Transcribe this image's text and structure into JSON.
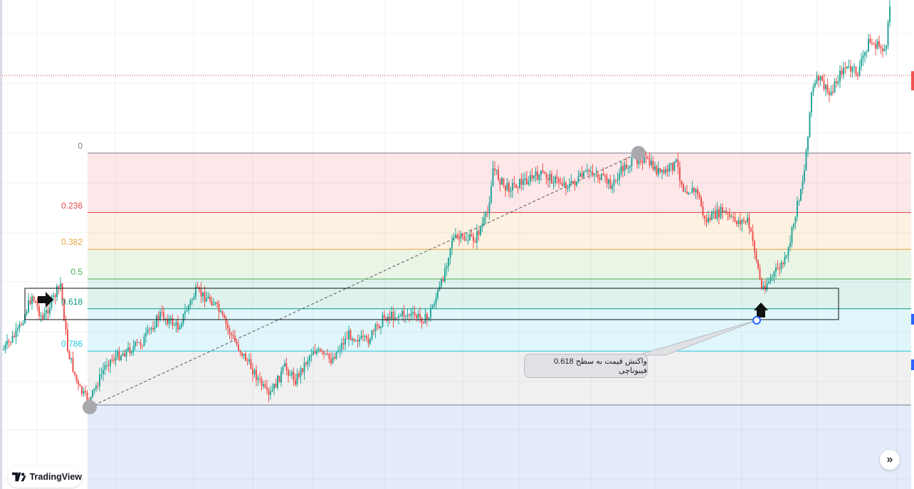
{
  "colors": {
    "up": "#26a69a",
    "down": "#ef5350",
    "price_line": "#c0392b",
    "selection": "#2962ff"
  },
  "chart_data": {
    "type": "candlestick",
    "title": "",
    "grid": true,
    "fibonacci": {
      "levels": [
        {
          "label": "0",
          "value": 0,
          "line_color": "#787b86",
          "fill": "#fde7e9"
        },
        {
          "label": "0.236",
          "value": 0.236,
          "line_color": "#e04848",
          "fill": "#fdf1e2"
        },
        {
          "label": "0.382",
          "value": 0.382,
          "line_color": "#e8a43c",
          "fill": "#eaf5e6"
        },
        {
          "label": "0.5",
          "value": 0.5,
          "line_color": "#4caf50",
          "fill": "#dff2ee"
        },
        {
          "label": "0.618",
          "value": 0.618,
          "line_color": "#089981",
          "fill": "#e0f6fa"
        },
        {
          "label": "0.786",
          "value": 0.786,
          "line_color": "#26c6da",
          "fill": "#f0f0f1"
        },
        {
          "label": "",
          "value": 1,
          "line_color": "#787b86",
          "fill": "#e6ebfc"
        }
      ],
      "label_colors": [
        "#787b86",
        "#e04848",
        "#e8a43c",
        "#4caf50",
        "#089981",
        "#26c6da",
        "#787b86"
      ]
    },
    "price_path_in_fib_ratio": [
      [
        2,
        0.78
      ],
      [
        10,
        0.71
      ],
      [
        18,
        0.565
      ],
      [
        24,
        0.66
      ],
      [
        34,
        0.52
      ],
      [
        38,
        0.78
      ],
      [
        44,
        0.93
      ],
      [
        50,
        0.99
      ],
      [
        60,
        0.83
      ],
      [
        80,
        0.75
      ],
      [
        90,
        0.64
      ],
      [
        100,
        0.69
      ],
      [
        110,
        0.55
      ],
      [
        120,
        0.59
      ],
      [
        132,
        0.75
      ],
      [
        142,
        0.86
      ],
      [
        151,
        0.97
      ],
      [
        160,
        0.85
      ],
      [
        166,
        0.9
      ],
      [
        176,
        0.78
      ],
      [
        186,
        0.82
      ],
      [
        196,
        0.72
      ],
      [
        206,
        0.75
      ],
      [
        216,
        0.65
      ],
      [
        228,
        0.64
      ],
      [
        240,
        0.66
      ],
      [
        248,
        0.52
      ],
      [
        254,
        0.34
      ],
      [
        260,
        0.34
      ],
      [
        267,
        0.34
      ],
      [
        274,
        0.24
      ],
      [
        277,
        0.06
      ],
      [
        284,
        0.14
      ],
      [
        304,
        0.085
      ],
      [
        320,
        0.13
      ],
      [
        332,
        0.07
      ],
      [
        344,
        0.13
      ],
      [
        350,
        0.06
      ],
      [
        360,
        0.015
      ],
      [
        372,
        0.085
      ],
      [
        380,
        0.04
      ],
      [
        384,
        0.14
      ],
      [
        392,
        0.155
      ],
      [
        396,
        0.27
      ],
      [
        406,
        0.23
      ],
      [
        412,
        0.27
      ],
      [
        420,
        0.27
      ],
      [
        424,
        0.38
      ],
      [
        428,
        0.54
      ],
      [
        436,
        0.47
      ],
      [
        442,
        0.42
      ],
      [
        447,
        0.24
      ],
      [
        452,
        0.07
      ],
      [
        456,
        -0.24
      ],
      [
        460,
        -0.3
      ],
      [
        466,
        -0.23
      ],
      [
        474,
        -0.34
      ],
      [
        482,
        -0.32
      ],
      [
        488,
        -0.44
      ],
      [
        498,
        -0.41
      ],
      [
        500,
        -0.59
      ]
    ]
  },
  "annotation": {
    "text": "واکنش قیمت به سطح 0.618 فیبوناچی"
  },
  "branding": {
    "logo_text": "TradingView"
  },
  "icons": {
    "right_arrow": "arrow-right-icon",
    "up_arrow": "arrow-up-icon",
    "scroll": "double-chevron-right-icon"
  }
}
